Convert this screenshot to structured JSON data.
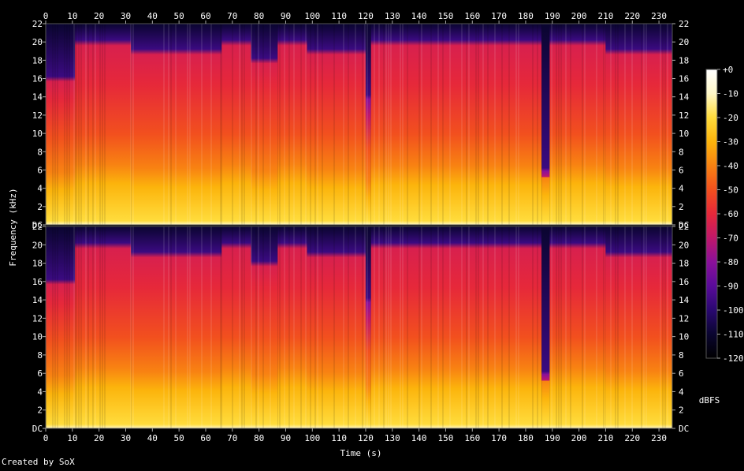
{
  "chart_data": {
    "type": "heatmap",
    "xlabel": "Time (s)",
    "ylabel": "Frequency (kHz)",
    "xlim": [
      0,
      235
    ],
    "ylim": [
      0,
      22
    ],
    "x_ticks": [
      0,
      10,
      20,
      30,
      40,
      50,
      60,
      70,
      80,
      90,
      100,
      110,
      120,
      130,
      140,
      150,
      160,
      170,
      180,
      190,
      200,
      210,
      220,
      230
    ],
    "y_ticks": [
      {
        "value": 0,
        "label": "DC"
      },
      {
        "value": 2,
        "label": "2"
      },
      {
        "value": 4,
        "label": "4"
      },
      {
        "value": 6,
        "label": "6"
      },
      {
        "value": 8,
        "label": "8"
      },
      {
        "value": 10,
        "label": "10"
      },
      {
        "value": 12,
        "label": "12"
      },
      {
        "value": 14,
        "label": "14"
      },
      {
        "value": 16,
        "label": "16"
      },
      {
        "value": 18,
        "label": "18"
      },
      {
        "value": 20,
        "label": "20"
      },
      {
        "value": 22,
        "label": "22"
      }
    ],
    "channels": 2,
    "colorbar": {
      "unit": "dBFS",
      "range": [
        -120,
        0
      ],
      "ticks": [
        {
          "value": 0,
          "label": "+0"
        },
        {
          "value": -10,
          "label": "-10"
        },
        {
          "value": -20,
          "label": "-20"
        },
        {
          "value": -30,
          "label": "-30"
        },
        {
          "value": -40,
          "label": "-40"
        },
        {
          "value": -50,
          "label": "-50"
        },
        {
          "value": -60,
          "label": "-60"
        },
        {
          "value": -70,
          "label": "-70"
        },
        {
          "value": -80,
          "label": "-80"
        },
        {
          "value": -90,
          "label": "-90"
        },
        {
          "value": -100,
          "label": "-100"
        },
        {
          "value": -110,
          "label": "-110"
        },
        {
          "value": -120,
          "label": "-120"
        }
      ]
    },
    "segments": [
      {
        "start": 0,
        "end": 11,
        "cutoff_khz": 16,
        "level": 0.55
      },
      {
        "start": 11,
        "end": 32,
        "cutoff_khz": 20,
        "level": 0.85
      },
      {
        "start": 32,
        "end": 66,
        "cutoff_khz": 19,
        "level": 0.7
      },
      {
        "start": 66,
        "end": 77,
        "cutoff_khz": 20,
        "level": 0.85
      },
      {
        "start": 77,
        "end": 87,
        "cutoff_khz": 18,
        "level": 0.6
      },
      {
        "start": 87,
        "end": 98,
        "cutoff_khz": 20,
        "level": 0.85
      },
      {
        "start": 98,
        "end": 120,
        "cutoff_khz": 19,
        "level": 0.68
      },
      {
        "start": 120,
        "end": 122,
        "cutoff_khz": 14,
        "level": 0.2
      },
      {
        "start": 122,
        "end": 186,
        "cutoff_khz": 20,
        "level": 0.8
      },
      {
        "start": 186,
        "end": 189,
        "cutoff_khz": 6,
        "level": 0.35
      },
      {
        "start": 189,
        "end": 210,
        "cutoff_khz": 20,
        "level": 0.85
      },
      {
        "start": 210,
        "end": 235,
        "cutoff_khz": 19,
        "level": 0.72
      }
    ]
  },
  "footer": {
    "credit": "Created by SoX"
  },
  "colors": {
    "background": "#000000",
    "text": "#ffffff",
    "frame": "#555555",
    "palette": [
      "#000000",
      "#0a0530",
      "#2a0870",
      "#5a0b9a",
      "#8a109a",
      "#c0186a",
      "#e6283a",
      "#f2501e",
      "#f88212",
      "#fcb40c",
      "#ffdc3c",
      "#fff8c8",
      "#ffffff"
    ]
  }
}
